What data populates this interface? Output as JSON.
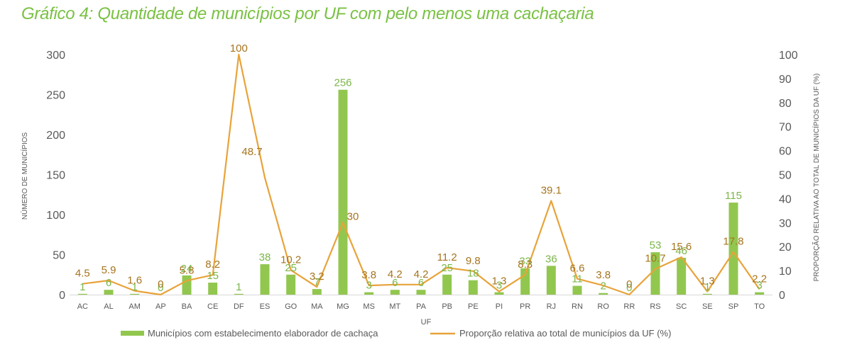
{
  "title": "Gráfico 4: Quantidade de municípios por UF com pelo menos uma cachaçaria",
  "chart_data": {
    "type": "bar+line",
    "categories": [
      "AC",
      "AL",
      "AM",
      "AP",
      "BA",
      "CE",
      "DF",
      "ES",
      "GO",
      "MA",
      "MG",
      "MS",
      "MT",
      "PA",
      "PB",
      "PE",
      "PI",
      "PR",
      "RJ",
      "RN",
      "RO",
      "RR",
      "RS",
      "SC",
      "SE",
      "SP",
      "TO"
    ],
    "series": [
      {
        "name": "Municípios com estabelecimento elaborador de cachaça",
        "type": "bar",
        "axis": "left",
        "color": "#92c74f",
        "values": [
          1,
          6,
          1,
          0,
          24,
          15,
          1,
          38,
          25,
          7,
          256,
          3,
          6,
          6,
          25,
          18,
          3,
          33,
          36,
          11,
          2,
          0,
          53,
          46,
          1,
          115,
          3
        ]
      },
      {
        "name": "Proporção relativa ao total de municípios da UF (%)",
        "type": "line",
        "axis": "right",
        "color": "#e8a33a",
        "values": [
          4.5,
          5.9,
          1.6,
          0,
          5.8,
          8.2,
          100,
          48.7,
          10.2,
          3.2,
          30,
          3.8,
          4.2,
          4.2,
          11.2,
          9.8,
          1.3,
          8.3,
          39.1,
          6.6,
          3.8,
          0,
          10.7,
          15.6,
          1.3,
          17.8,
          2.2
        ]
      }
    ],
    "xlabel": "UF",
    "ylabel": "NÚMERO DE MUNICÍPIOS",
    "y2label": "PROPORÇÃO RELATIVA AO TOTAL DE MUNICÍPIOS DA UF (%)",
    "ylim": [
      0,
      300
    ],
    "y2lim": [
      0,
      100
    ],
    "yticks": [
      0,
      50,
      100,
      150,
      200,
      250,
      300
    ],
    "y2ticks": [
      0,
      10,
      20,
      30,
      40,
      50,
      60,
      70,
      80,
      90,
      100
    ],
    "grid": false,
    "legend_position": "bottom"
  }
}
